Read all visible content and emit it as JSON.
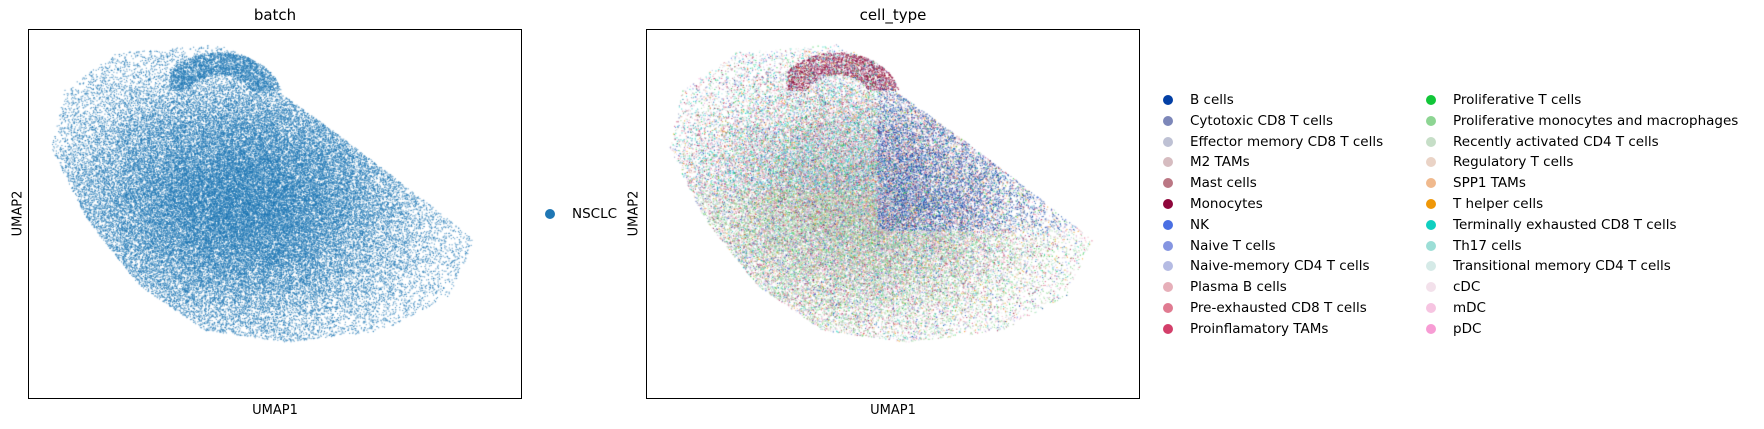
{
  "chart_data": [
    {
      "type": "scatter",
      "title": "batch",
      "xlabel": "UMAP1",
      "ylabel": "UMAP2",
      "legend": {
        "placement": "right",
        "entries": [
          {
            "label": "NSCLC",
            "color": "#1f77b4"
          }
        ]
      }
    },
    {
      "type": "scatter",
      "title": "cell_type",
      "xlabel": "UMAP1",
      "ylabel": "UMAP2",
      "legend": {
        "placement": "right",
        "columns": 2,
        "entries": [
          {
            "label": "B cells",
            "color": "#023fa5"
          },
          {
            "label": "Cytotoxic CD8 T cells",
            "color": "#7d87b9"
          },
          {
            "label": "Effector memory CD8 T cells",
            "color": "#bec1d4"
          },
          {
            "label": "M2 TAMs",
            "color": "#d6bcc0"
          },
          {
            "label": "Mast cells",
            "color": "#bb7784"
          },
          {
            "label": "Monocytes",
            "color": "#8e063b"
          },
          {
            "label": "NK",
            "color": "#4a6fe3"
          },
          {
            "label": "Naive T cells",
            "color": "#8595e1"
          },
          {
            "label": "Naive-memory CD4 T cells",
            "color": "#b5bbe3"
          },
          {
            "label": "Plasma B cells",
            "color": "#e6afb9"
          },
          {
            "label": "Pre-exhausted CD8 T cells",
            "color": "#e07b91"
          },
          {
            "label": "Proinflamatory TAMs",
            "color": "#d33f6a"
          },
          {
            "label": "Proliferative T cells",
            "color": "#11c638"
          },
          {
            "label": "Proliferative monocytes and macrophages",
            "color": "#8dd593"
          },
          {
            "label": "Recently activated CD4 T cells",
            "color": "#c6dec7"
          },
          {
            "label": "Regulatory T cells",
            "color": "#ead3c6"
          },
          {
            "label": "SPP1 TAMs",
            "color": "#f0b98d"
          },
          {
            "label": "T helper cells",
            "color": "#ef9708"
          },
          {
            "label": "Terminally exhausted CD8 T cells",
            "color": "#0fcfc0"
          },
          {
            "label": "Th17 cells",
            "color": "#9cded6"
          },
          {
            "label": "Transitional memory CD4 T cells",
            "color": "#d5eae7"
          },
          {
            "label": "cDC",
            "color": "#f3e1eb"
          },
          {
            "label": "mDC",
            "color": "#f6c4e1"
          },
          {
            "label": "pDC",
            "color": "#f79cd4"
          }
        ]
      }
    }
  ]
}
